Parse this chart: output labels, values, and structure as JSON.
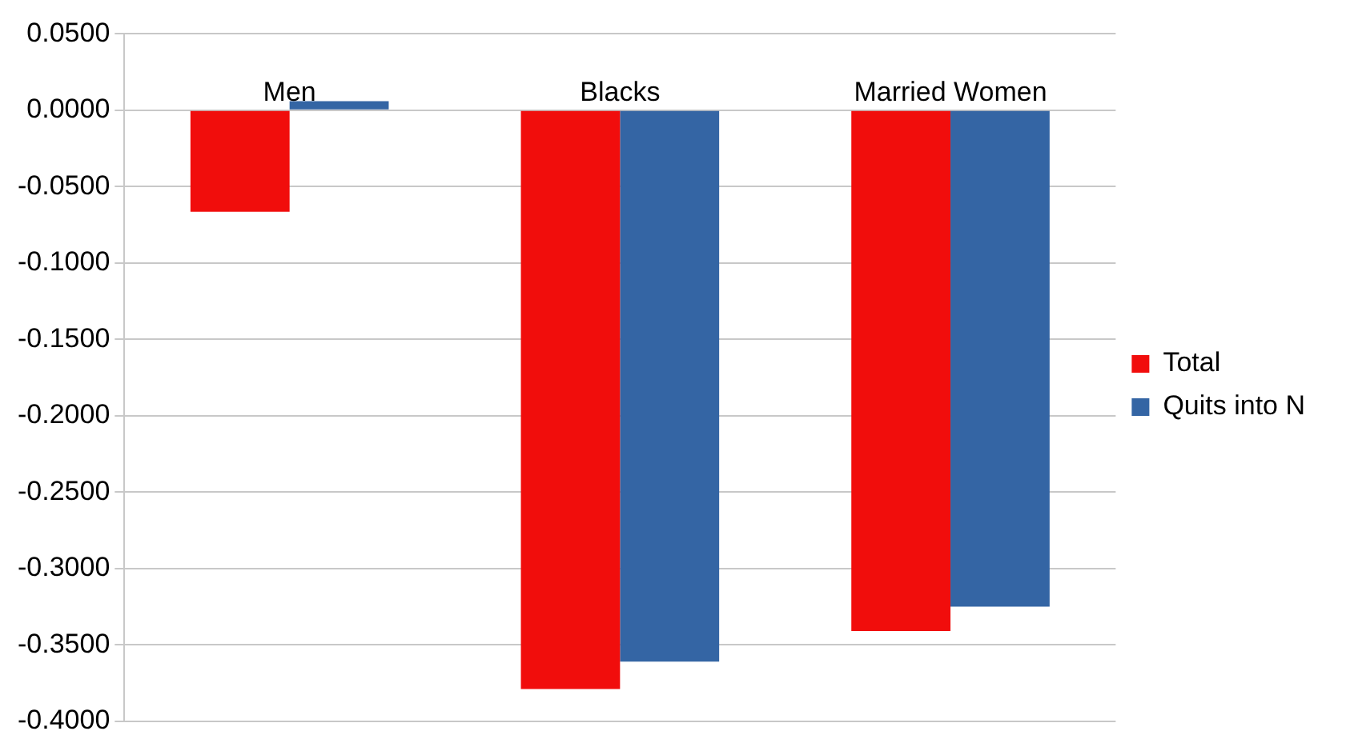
{
  "chart_data": {
    "type": "bar",
    "categories": [
      "Men",
      "Blacks",
      "Married Women"
    ],
    "series": [
      {
        "name": "Total",
        "color": "#f10d0c",
        "values": [
          -0.0665,
          -0.379,
          -0.341
        ]
      },
      {
        "name": "Quits into N",
        "color": "#3465a4",
        "values": [
          0.006,
          -0.361,
          -0.325
        ]
      }
    ],
    "ylim": [
      -0.4,
      0.05
    ],
    "yticks": [
      {
        "value": 0.05,
        "label": "0.0500"
      },
      {
        "value": 0,
        "label": "0.0000"
      },
      {
        "value": -0.05,
        "label": "-0.0500"
      },
      {
        "value": -0.1,
        "label": "-0.1000"
      },
      {
        "value": -0.15,
        "label": "-0.1500"
      },
      {
        "value": -0.2,
        "label": "-0.2000"
      },
      {
        "value": -0.25,
        "label": "-0.2500"
      },
      {
        "value": -0.3,
        "label": "-0.3000"
      },
      {
        "value": -0.35,
        "label": "-0.3500"
      },
      {
        "value": -0.4,
        "label": "-0.4000"
      }
    ],
    "grid": "y",
    "legend": "right"
  }
}
